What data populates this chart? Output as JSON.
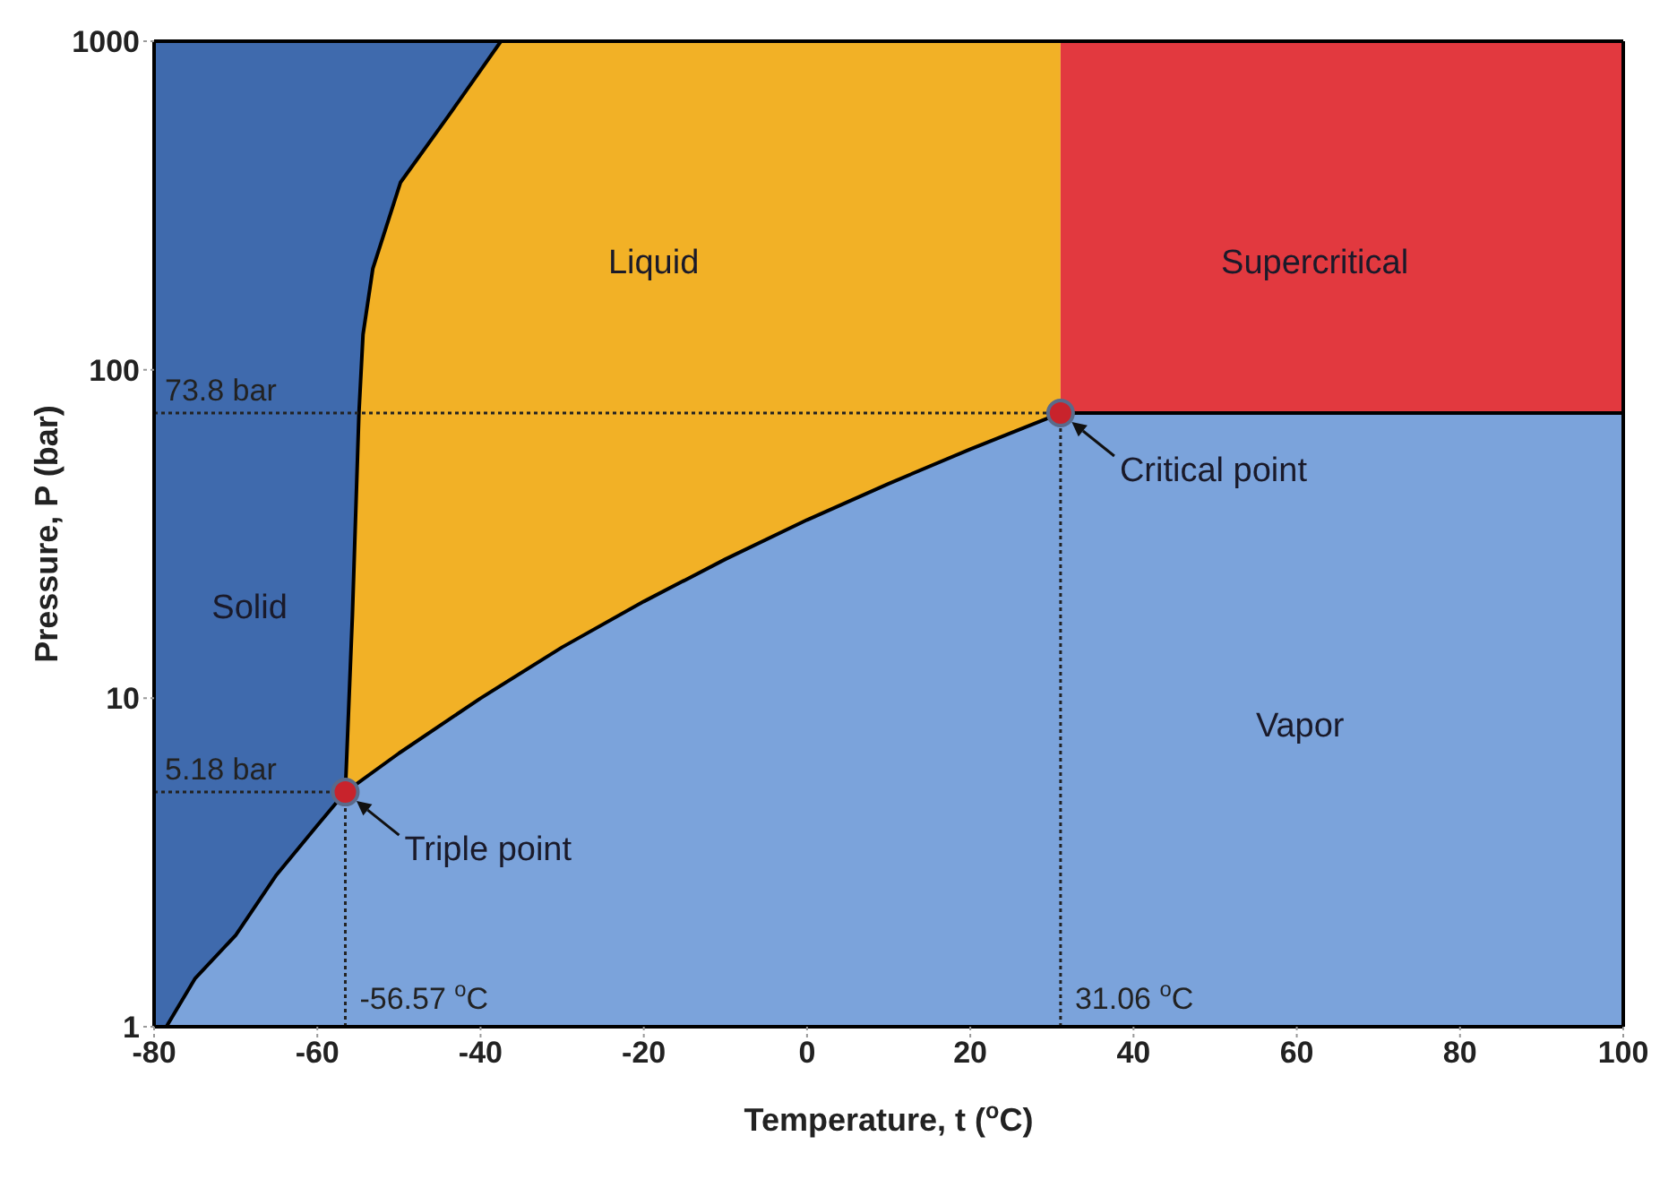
{
  "chart_data": {
    "type": "area",
    "xlabel": "Temperature, t ($^{o}$C)",
    "ylabel": "Pressure, P (bar)",
    "xlim": [
      -80,
      100
    ],
    "xticks": [
      -80,
      -60,
      -40,
      -20,
      0,
      20,
      40,
      60,
      80,
      100
    ],
    "ylim": [
      1,
      1000
    ],
    "yticks": [
      1,
      10,
      100,
      1000
    ],
    "log": "y",
    "line_style": "solid",
    "series": [
      {
        "name": "Solid",
        "color": "#3f6aad",
        "x": [
          -80,
          -37.5
        ],
        "values": [
          1000,
          1000
        ]
      },
      {
        "name": "Liquid",
        "color": "#f2b126",
        "x": [
          -56.57,
          -55.7,
          -54.9,
          -54.4,
          -53.2,
          -49.8,
          -43.9,
          -37.5,
          31.06
        ],
        "values": [
          5.18,
          17.9,
          73.8,
          128,
          203,
          372,
          594,
          1000,
          1000
        ]
      },
      {
        "name": "Supercritical",
        "color": "#e2393f",
        "x": [
          31.06,
          100
        ],
        "values": [
          1000,
          1000
        ]
      },
      {
        "name": "Vapor",
        "color": "#7ba3db",
        "x": [
          -78.5,
          -75,
          -70,
          -65,
          -60,
          -56.57,
          -50,
          -40,
          -30,
          -20,
          -10,
          0,
          10,
          20,
          31.06,
          100
        ],
        "values": [
          1,
          1.4,
          1.9,
          2.9,
          4.1,
          5.18,
          6.8,
          10,
          14.3,
          19.7,
          26.5,
          34.9,
          45,
          57.3,
          73.8,
          73.8
        ]
      },
      {
        "type": "scatter",
        "color": "#c8232c",
        "marker": "circle",
        "x": [
          -56.57,
          31.06
        ],
        "values": [
          5.18,
          73.8
        ]
      }
    ],
    "ref_lines": [
      {
        "axis": "y",
        "value": 73.8,
        "label": "73.8 bar",
        "line_style": "dotted",
        "color": "#222222"
      },
      {
        "axis": "y",
        "value": 5.18,
        "label": "5.18 bar",
        "line_style": "dotted",
        "color": "#222222"
      },
      {
        "axis": "x",
        "value": -56.57,
        "label": "-56.57 $^{o}$C",
        "line_style": "dotted",
        "color": "#222222"
      },
      {
        "axis": "x",
        "value": 31.06,
        "label": "31.06 $^{o}$C",
        "line_style": "dotted",
        "color": "#222222"
      }
    ],
    "annotations": [
      {
        "text": "Triple point",
        "x": -56.57,
        "y": 5.18
      },
      {
        "text": "Critical point",
        "x": 31.06,
        "y": 73.8
      }
    ]
  }
}
